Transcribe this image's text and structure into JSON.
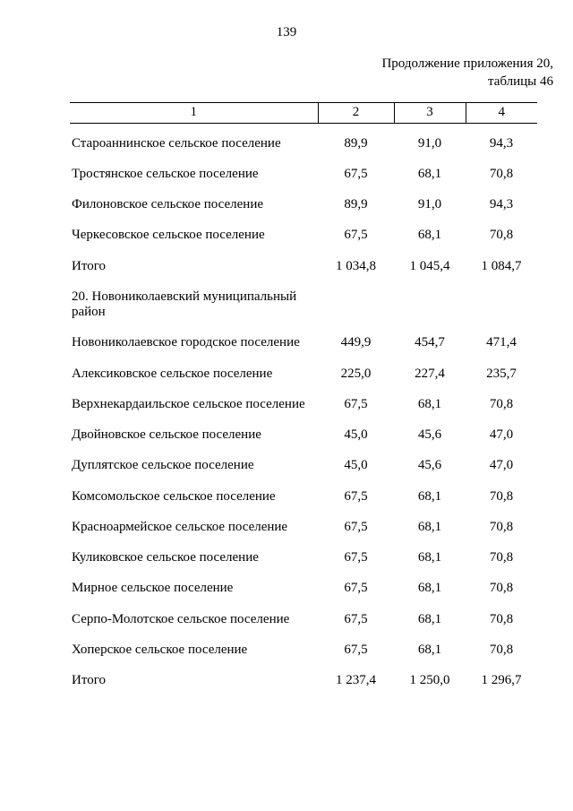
{
  "page": {
    "page_number": "139",
    "continuation_line1": "Продолжение приложения 20,",
    "continuation_line2": "таблицы 46"
  },
  "table": {
    "columns": [
      "1",
      "2",
      "3",
      "4"
    ],
    "rows": [
      {
        "label": "Староаннинское сельское поселение",
        "values": [
          "89,9",
          "91,0",
          "94,3"
        ]
      },
      {
        "label": "Тростянское сельское поселение",
        "values": [
          "67,5",
          "68,1",
          "70,8"
        ]
      },
      {
        "label": "Филоновское сельское поселение",
        "values": [
          "89,9",
          "91,0",
          "94,3"
        ]
      },
      {
        "label": "Черкесовское сельское поселение",
        "values": [
          "67,5",
          "68,1",
          "70,8"
        ]
      },
      {
        "label": "Итого",
        "values": [
          "1 034,8",
          "1 045,4",
          "1 084,7"
        ]
      },
      {
        "label": "20. Новониколаевский муниципальный район",
        "section": true
      },
      {
        "label": "Новониколаевское городское поселение",
        "values": [
          "449,9",
          "454,7",
          "471,4"
        ]
      },
      {
        "label": "Алексиковское сельское поселение",
        "values": [
          "225,0",
          "227,4",
          "235,7"
        ]
      },
      {
        "label": "Верхнекардаильское сельское поселение",
        "values": [
          "67,5",
          "68,1",
          "70,8"
        ]
      },
      {
        "label": "Двойновское сельское поселение",
        "values": [
          "45,0",
          "45,6",
          "47,0"
        ]
      },
      {
        "label": "Дуплятское сельское поселение",
        "values": [
          "45,0",
          "45,6",
          "47,0"
        ]
      },
      {
        "label": "Комсомольское сельское поселение",
        "values": [
          "67,5",
          "68,1",
          "70,8"
        ]
      },
      {
        "label": "Красноармейское сельское поселение",
        "values": [
          "67,5",
          "68,1",
          "70,8"
        ]
      },
      {
        "label": "Куликовское сельское поселение",
        "values": [
          "67,5",
          "68,1",
          "70,8"
        ]
      },
      {
        "label": "Мирное сельское поселение",
        "values": [
          "67,5",
          "68,1",
          "70,8"
        ]
      },
      {
        "label": "Серпо-Молотское сельское поселение",
        "values": [
          "67,5",
          "68,1",
          "70,8"
        ]
      },
      {
        "label": "Хоперское сельское поселение",
        "values": [
          "67,5",
          "68,1",
          "70,8"
        ]
      },
      {
        "label": "Итого",
        "values": [
          "1 237,4",
          "1 250,0",
          "1 296,7"
        ]
      }
    ]
  }
}
